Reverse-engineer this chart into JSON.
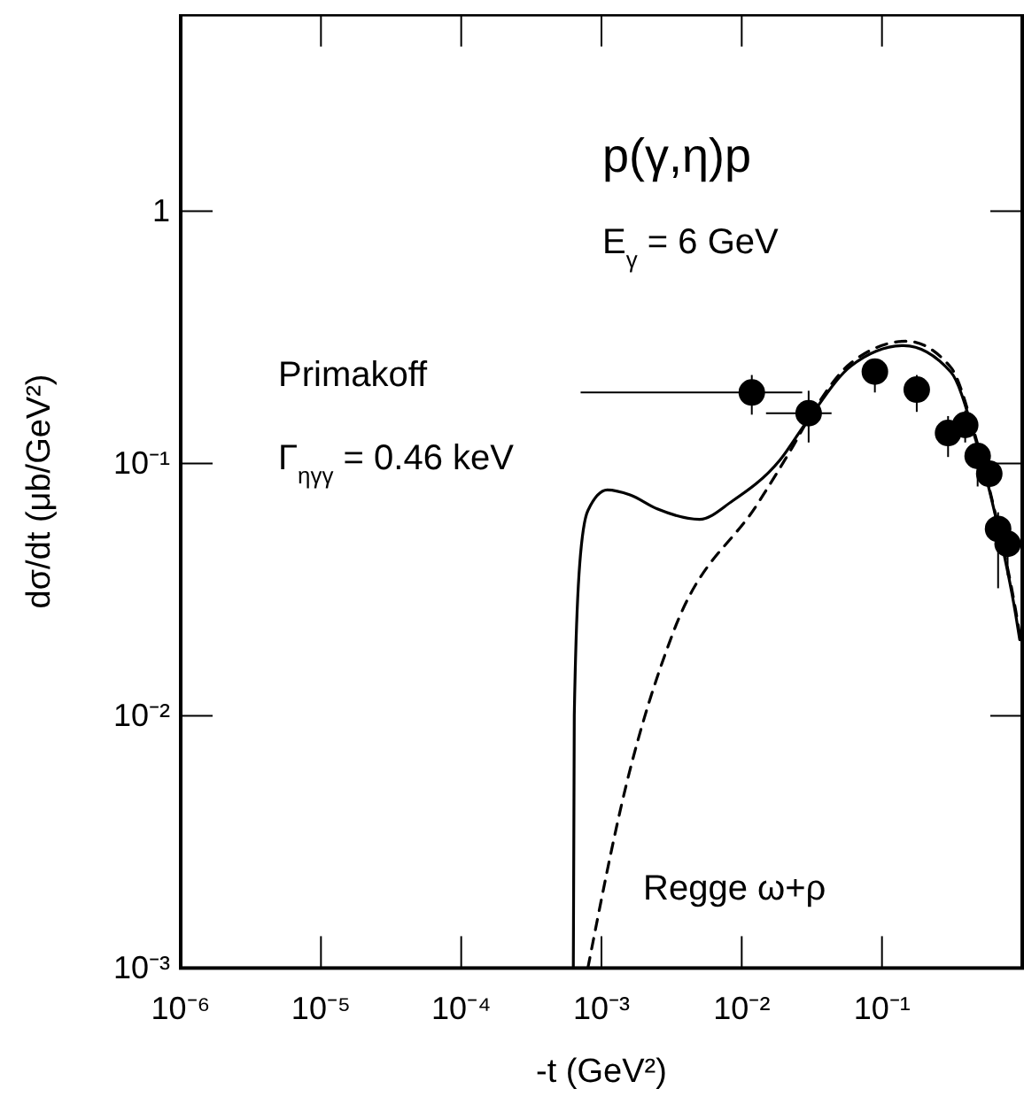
{
  "chart_data": {
    "type": "line",
    "xlabel": "-t (GeV²)",
    "ylabel": "dσ/dt (μb/GeV²)",
    "log": "xy",
    "grid": false,
    "xlim": [
      1e-06,
      1
    ],
    "ylim": [
      0.001,
      6
    ],
    "xticks": [
      {
        "value": 1e-06,
        "label": "10⁻⁶"
      },
      {
        "value": 1e-05,
        "label": "10⁻⁵"
      },
      {
        "value": 0.0001,
        "label": "10⁻⁴"
      },
      {
        "value": 0.001,
        "label": "10⁻³"
      },
      {
        "value": 0.01,
        "label": "10⁻²"
      },
      {
        "value": 0.1,
        "label": "10⁻¹"
      }
    ],
    "yticks": [
      {
        "value": 0.001,
        "label": "10⁻³"
      },
      {
        "value": 0.01,
        "label": "10⁻²"
      },
      {
        "value": 0.1,
        "label": "10⁻¹"
      },
      1
    ],
    "series": [
      {
        "color": "#000000",
        "line_style": "solid",
        "x": [
          0.00063,
          0.00064,
          0.0007,
          0.0008,
          0.0011,
          0.0016,
          0.0025,
          0.005,
          0.0086,
          0.0187,
          0.03,
          0.06,
          0.143,
          0.31,
          0.46,
          0.64,
          0.9,
          0.96
        ],
        "values": [
          0.001,
          0.01,
          0.04,
          0.065,
          0.0785,
          0.075,
          0.066,
          0.06,
          0.071,
          0.103,
          0.15,
          0.243,
          0.293,
          0.23,
          0.127,
          0.063,
          0.025,
          0.02
        ]
      },
      {
        "color": "#000000",
        "line_style": "dashed",
        "x": [
          0.0008,
          0.0015,
          0.00327,
          0.0133,
          0.0227,
          0.03,
          0.06,
          0.15,
          0.31,
          0.46,
          0.64,
          0.9,
          0.96
        ],
        "values": [
          0.001,
          0.0053,
          0.0216,
          0.0706,
          0.1145,
          0.15,
          0.25,
          0.305,
          0.24,
          0.13,
          0.064,
          0.026,
          0.021
        ]
      },
      {
        "type": "scatter",
        "color": "#000000",
        "marker": "circle",
        "x": [
          0.0118,
          0.03,
          0.089,
          0.177,
          0.296,
          0.392,
          0.481,
          0.582,
          0.673,
          0.787
        ],
        "values": [
          0.191,
          0.158,
          0.231,
          0.196,
          0.132,
          0.142,
          0.107,
          0.091,
          0.055,
          0.048
        ],
        "errors": [
          [
            0.156,
            0.224
          ],
          [
            0.121,
            0.194
          ],
          [
            0.191,
            0.256
          ],
          [
            0.16,
            0.224
          ],
          [
            0.106,
            0.154
          ],
          [
            0.121,
            0.162
          ],
          [
            0.081,
            0.121
          ],
          [
            0.079,
            0.103
          ],
          [
            0.032,
            0.064
          ],
          [
            0.036,
            0.055
          ]
        ],
        "xerrors": [
          [
            0.00071,
            0.027
          ],
          [
            0.0149,
            0.0437
          ],
          null,
          null,
          null,
          null,
          null,
          null,
          null,
          null
        ]
      }
    ],
    "annotations": [
      "p(γ,η)p",
      "E$_{γ}$ = 6 GeV",
      "Primakoff",
      "Γ$_{ηγγ}$ = 0.46 keV",
      "Regge ω+ρ"
    ]
  }
}
